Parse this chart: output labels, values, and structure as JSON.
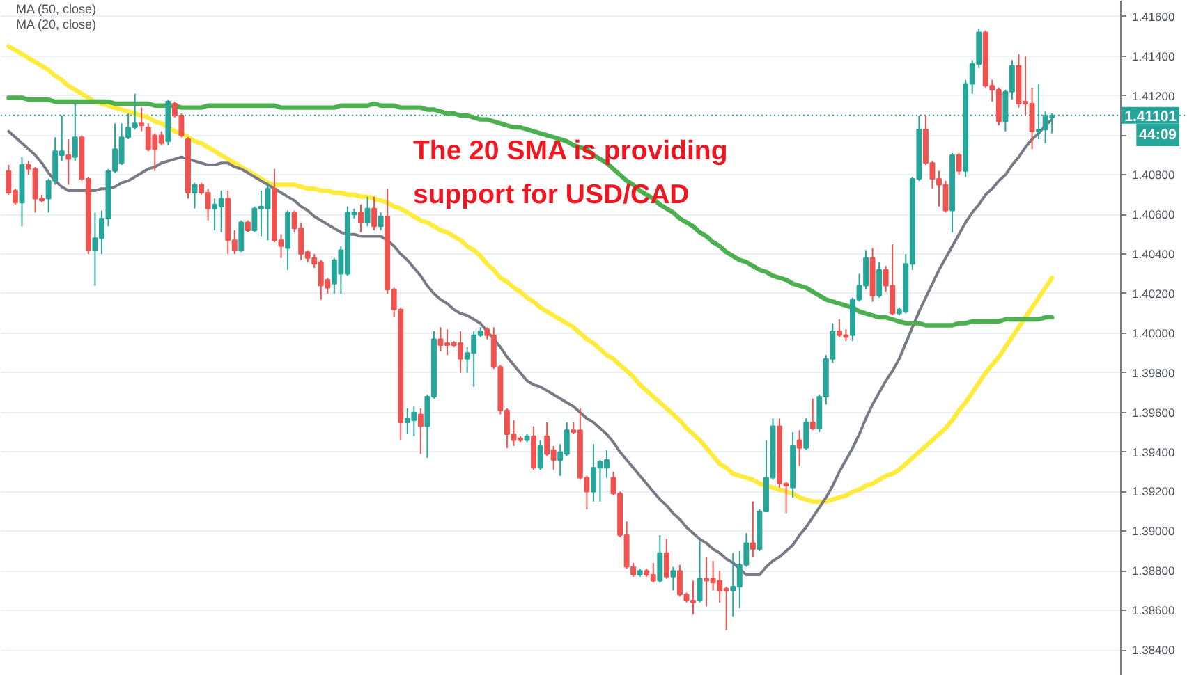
{
  "chart_data": {
    "type": "candlestick",
    "categories": [
      null,
      null,
      null,
      null,
      null,
      null,
      null,
      null,
      null,
      null,
      null,
      null,
      null,
      null,
      null,
      null,
      null,
      null,
      null,
      null,
      null,
      null,
      null,
      null,
      null,
      null,
      null,
      null,
      null,
      null,
      null,
      null,
      null,
      null,
      null,
      null,
      null,
      null,
      null,
      null,
      null,
      null,
      null,
      null,
      null,
      null,
      null,
      null,
      null,
      null,
      null,
      null,
      null,
      null,
      null,
      null,
      null,
      null,
      null,
      null,
      null,
      null,
      null,
      null,
      null,
      null,
      null,
      null,
      null,
      null,
      null,
      null,
      null,
      null,
      null,
      null,
      null,
      null,
      null,
      null,
      null,
      null,
      null,
      null,
      null,
      null,
      null,
      null,
      null,
      null,
      null,
      null,
      null,
      null,
      null,
      null,
      null,
      null,
      null,
      null,
      null,
      null,
      null,
      null,
      null,
      null,
      null,
      null,
      null,
      null,
      null,
      null,
      null,
      null,
      null,
      null,
      null,
      null,
      null,
      null,
      null,
      null,
      null,
      null,
      null,
      null,
      null,
      null,
      null,
      null,
      null,
      null,
      null,
      null,
      null,
      null,
      null,
      null,
      null,
      null,
      null,
      null,
      null,
      null,
      null,
      null,
      null,
      null,
      null,
      null,
      null,
      null,
      null,
      null,
      null,
      null,
      null,
      null
    ],
    "ohlc": [
      [
        1.4082,
        1.4085,
        1.407,
        1.4071
      ],
      [
        1.4072,
        1.4073,
        1.4065,
        1.4066
      ],
      [
        1.4066,
        1.4089,
        1.4054,
        1.4085
      ],
      [
        1.4085,
        1.4087,
        1.408,
        1.4083
      ],
      [
        1.4083,
        1.4084,
        1.4061,
        1.4068
      ],
      [
        1.4068,
        1.407,
        1.4066,
        1.4067
      ],
      [
        1.4068,
        1.4078,
        1.4061,
        1.4077
      ],
      [
        1.4077,
        1.4099,
        1.4075,
        1.4092
      ],
      [
        1.409,
        1.411,
        1.4087,
        1.4092
      ],
      [
        1.409,
        1.4098,
        1.4075,
        1.4088
      ],
      [
        1.4089,
        1.4116,
        1.4087,
        1.4099
      ],
      [
        1.4099,
        1.41,
        1.4077,
        1.4078
      ],
      [
        1.4078,
        1.4079,
        1.404,
        1.4042
      ],
      [
        1.4042,
        1.4061,
        1.4024,
        1.4048
      ],
      [
        1.4048,
        1.4062,
        1.404,
        1.4058
      ],
      [
        1.4058,
        1.4083,
        1.4054,
        1.4082
      ],
      [
        1.4082,
        1.4106,
        1.4081,
        1.4093
      ],
      [
        1.4086,
        1.4106,
        1.4085,
        1.4099
      ],
      [
        1.4099,
        1.4111,
        1.4098,
        1.4104
      ],
      [
        1.4104,
        1.4121,
        1.4103,
        1.4106
      ],
      [
        1.4106,
        1.4114,
        1.4102,
        1.4105
      ],
      [
        1.4104,
        1.4106,
        1.4092,
        1.4093
      ],
      [
        1.41,
        1.4101,
        1.4082,
        1.4093
      ],
      [
        1.41,
        1.4102,
        1.4095,
        1.4096
      ],
      [
        1.4097,
        1.4118,
        1.4095,
        1.4117
      ],
      [
        1.4116,
        1.4117,
        1.4109,
        1.411
      ],
      [
        1.411,
        1.4111,
        1.4099,
        1.41
      ],
      [
        1.4098,
        1.4099,
        1.4068,
        1.4071
      ],
      [
        1.4071,
        1.4076,
        1.4063,
        1.4075
      ],
      [
        1.4075,
        1.4076,
        1.407,
        1.4071
      ],
      [
        1.4071,
        1.4073,
        1.4057,
        1.4063
      ],
      [
        1.4063,
        1.4068,
        1.4052,
        1.4065
      ],
      [
        1.4064,
        1.4072,
        1.4051,
        1.4068
      ],
      [
        1.4068,
        1.4072,
        1.404,
        1.4047
      ],
      [
        1.4047,
        1.4052,
        1.404,
        1.4042
      ],
      [
        1.4042,
        1.4057,
        1.4041,
        1.4056
      ],
      [
        1.4056,
        1.4057,
        1.4051,
        1.4052
      ],
      [
        1.4052,
        1.4064,
        1.4051,
        1.4063
      ],
      [
        1.4063,
        1.4072,
        1.4049,
        1.4064
      ],
      [
        1.4063,
        1.4076,
        1.4047,
        1.4073
      ],
      [
        1.4073,
        1.4083,
        1.4046,
        1.4047
      ],
      [
        1.4047,
        1.405,
        1.4038,
        1.4044
      ],
      [
        1.4043,
        1.4062,
        1.4032,
        1.4061
      ],
      [
        1.4061,
        1.4062,
        1.4051,
        1.4053
      ],
      [
        1.4053,
        1.4056,
        1.4037,
        1.404
      ],
      [
        1.4041,
        1.4042,
        1.4036,
        1.4038
      ],
      [
        1.4038,
        1.404,
        1.4033,
        1.4035
      ],
      [
        1.4036,
        1.4037,
        1.4017,
        1.4024
      ],
      [
        1.4027,
        1.4028,
        1.402,
        1.4023
      ],
      [
        1.4025,
        1.4038,
        1.402,
        1.4037
      ],
      [
        1.403,
        1.4044,
        1.402,
        1.4042
      ],
      [
        1.403,
        1.4064,
        1.4029,
        1.4061
      ],
      [
        1.406,
        1.4063,
        1.4058,
        1.4061
      ],
      [
        1.4061,
        1.4065,
        1.4051,
        1.4056
      ],
      [
        1.4056,
        1.4069,
        1.4054,
        1.4063
      ],
      [
        1.4063,
        1.4069,
        1.4052,
        1.4054
      ],
      [
        1.4054,
        1.4061,
        1.4052,
        1.4059
      ],
      [
        1.4059,
        1.4073,
        1.402,
        1.4022
      ],
      [
        1.4022,
        1.4023,
        1.4008,
        1.4012
      ],
      [
        1.4012,
        1.4013,
        1.3946,
        1.3955
      ],
      [
        1.3955,
        1.3962,
        1.3949,
        1.3957
      ],
      [
        1.3956,
        1.3963,
        1.3948,
        1.396
      ],
      [
        1.3959,
        1.3962,
        1.3939,
        1.3953
      ],
      [
        1.3953,
        1.3969,
        1.3937,
        1.3968
      ],
      [
        1.3968,
        1.4001,
        1.3967,
        1.3997
      ],
      [
        1.3997,
        1.4003,
        1.3991,
        1.3994
      ],
      [
        1.3995,
        1.4002,
        1.3989,
        1.3994
      ],
      [
        1.3995,
        1.3996,
        1.3993,
        1.3994
      ],
      [
        1.3995,
        1.4001,
        1.398,
        1.3987
      ],
      [
        1.3987,
        1.3993,
        1.398,
        1.399
      ],
      [
        1.399,
        1.4001,
        1.3973,
        1.3999
      ],
      [
        1.3999,
        1.4003,
        1.3998,
        1.4001
      ],
      [
        1.4002,
        1.4003,
        1.3997,
        1.3999
      ],
      [
        1.3999,
        1.4003,
        1.3982,
        1.3983
      ],
      [
        1.3983,
        1.3984,
        1.3959,
        1.3961
      ],
      [
        1.3961,
        1.3962,
        1.3942,
        1.3949
      ],
      [
        1.3949,
        1.3956,
        1.3943,
        1.3946
      ],
      [
        1.3947,
        1.3948,
        1.3945,
        1.3946
      ],
      [
        1.3946,
        1.3949,
        1.3945,
        1.3948
      ],
      [
        1.3948,
        1.3953,
        1.3931,
        1.3932
      ],
      [
        1.3932,
        1.3946,
        1.3931,
        1.3943
      ],
      [
        1.3948,
        1.3955,
        1.3938,
        1.3939
      ],
      [
        1.3941,
        1.3943,
        1.3931,
        1.3936
      ],
      [
        1.3936,
        1.3944,
        1.3928,
        1.394
      ],
      [
        1.3939,
        1.3955,
        1.3938,
        1.3951
      ],
      [
        1.3951,
        1.3955,
        1.3949,
        1.395
      ],
      [
        1.3951,
        1.3962,
        1.3926,
        1.3927
      ],
      [
        1.3927,
        1.3928,
        1.3911,
        1.392
      ],
      [
        1.392,
        1.3944,
        1.3915,
        1.3932
      ],
      [
        1.3932,
        1.3936,
        1.3915,
        1.3935
      ],
      [
        1.3932,
        1.3941,
        1.3927,
        1.3936
      ],
      [
        1.3927,
        1.393,
        1.3918,
        1.3919
      ],
      [
        1.3919,
        1.392,
        1.3897,
        1.3898
      ],
      [
        1.3898,
        1.3905,
        1.3881,
        1.3882
      ],
      [
        1.3882,
        1.3884,
        1.3877,
        1.3878
      ],
      [
        1.3878,
        1.3881,
        1.3877,
        1.388
      ],
      [
        1.388,
        1.3881,
        1.3877,
        1.3878
      ],
      [
        1.3878,
        1.3884,
        1.3874,
        1.3875
      ],
      [
        1.3875,
        1.3898,
        1.3874,
        1.3889
      ],
      [
        1.3889,
        1.3896,
        1.3876,
        1.3877
      ],
      [
        1.3877,
        1.3882,
        1.387,
        1.388
      ],
      [
        1.388,
        1.3883,
        1.3867,
        1.3868
      ],
      [
        1.3868,
        1.3869,
        1.3864,
        1.3865
      ],
      [
        1.3865,
        1.3875,
        1.3858,
        1.3864
      ],
      [
        1.3865,
        1.3895,
        1.3864,
        1.3876
      ],
      [
        1.3876,
        1.3887,
        1.3862,
        1.3875
      ],
      [
        1.3876,
        1.3885,
        1.387,
        1.3874
      ],
      [
        1.3875,
        1.388,
        1.3864,
        1.387
      ],
      [
        1.3871,
        1.3872,
        1.385,
        1.387
      ],
      [
        1.387,
        1.3889,
        1.3857,
        1.3872
      ],
      [
        1.3872,
        1.389,
        1.3861,
        1.3883
      ],
      [
        1.3883,
        1.3899,
        1.3882,
        1.3894
      ],
      [
        1.3894,
        1.3915,
        1.3887,
        1.3891
      ],
      [
        1.3891,
        1.3911,
        1.389,
        1.391
      ],
      [
        1.391,
        1.3946,
        1.391,
        1.3927
      ],
      [
        1.3927,
        1.3957,
        1.3926,
        1.3953
      ],
      [
        1.3953,
        1.3957,
        1.3922,
        1.3924
      ],
      [
        1.3924,
        1.3925,
        1.3909,
        1.3923
      ],
      [
        1.3922,
        1.395,
        1.3917,
        1.3943
      ],
      [
        1.3946,
        1.3951,
        1.3933,
        1.3942
      ],
      [
        1.3942,
        1.3957,
        1.3941,
        1.3955
      ],
      [
        1.3955,
        1.3967,
        1.3951,
        1.3952
      ],
      [
        1.3952,
        1.3969,
        1.395,
        1.3968
      ],
      [
        1.3968,
        1.3989,
        1.3964,
        1.3987
      ],
      [
        1.3987,
        1.4005,
        1.3985,
        1.4001
      ],
      [
        1.4001,
        1.4007,
        1.3998,
        1.3999
      ],
      [
        1.3999,
        1.4002,
        1.3996,
        1.3998
      ],
      [
        1.3999,
        1.4018,
        1.3996,
        1.4017
      ],
      [
        1.4017,
        1.403,
        1.4016,
        1.4024
      ],
      [
        1.4024,
        1.4042,
        1.4022,
        1.4038
      ],
      [
        1.4038,
        1.4043,
        1.4016,
        1.4019
      ],
      [
        1.4019,
        1.4036,
        1.4018,
        1.4032
      ],
      [
        1.4032,
        1.4034,
        1.4021,
        1.4024
      ],
      [
        1.4024,
        1.4045,
        1.4009,
        1.401
      ],
      [
        1.401,
        1.4013,
        1.4009,
        1.4012
      ],
      [
        1.4011,
        1.404,
        1.401,
        1.4035
      ],
      [
        1.4035,
        1.4079,
        1.4032,
        1.4078
      ],
      [
        1.4078,
        1.411,
        1.4077,
        1.4103
      ],
      [
        1.4103,
        1.411,
        1.4085,
        1.4086
      ],
      [
        1.4086,
        1.4087,
        1.4073,
        1.4078
      ],
      [
        1.4078,
        1.4082,
        1.4064,
        1.4075
      ],
      [
        1.4075,
        1.4077,
        1.4061,
        1.4062
      ],
      [
        1.4062,
        1.4091,
        1.4051,
        1.409
      ],
      [
        1.409,
        1.4091,
        1.408,
        1.4082
      ],
      [
        1.4082,
        1.4128,
        1.4079,
        1.4126
      ],
      [
        1.4126,
        1.4138,
        1.4121,
        1.4136
      ],
      [
        1.4136,
        1.4154,
        1.4134,
        1.4152
      ],
      [
        1.4152,
        1.4153,
        1.4124,
        1.4125
      ],
      [
        1.4125,
        1.4128,
        1.4117,
        1.4123
      ],
      [
        1.4123,
        1.4124,
        1.4105,
        1.4107
      ],
      [
        1.4107,
        1.4123,
        1.4102,
        1.4122
      ],
      [
        1.4122,
        1.4138,
        1.4118,
        1.4135
      ],
      [
        1.4135,
        1.4141,
        1.4114,
        1.4116
      ],
      [
        1.4117,
        1.414,
        1.411,
        1.4116
      ],
      [
        1.4116,
        1.4124,
        1.4093,
        1.4102
      ],
      [
        1.4102,
        1.4126,
        1.4098,
        1.4103
      ],
      [
        1.4103,
        1.4112,
        1.4096,
        1.411
      ],
      [
        1.4109,
        1.4111,
        1.4101,
        1.411
      ]
    ],
    "colors": [
      "#ef5350",
      "#ef5350",
      "#26a69a",
      "#ef5350",
      "#ef5350",
      "#ef5350",
      "#26a69a",
      "#26a69a",
      "#26a69a",
      "#ef5350",
      "#26a69a",
      "#ef5350",
      "#ef5350",
      "#26a69a",
      "#26a69a",
      "#26a69a",
      "#26a69a",
      "#26a69a",
      "#26a69a",
      "#26a69a",
      "#ef5350",
      "#ef5350",
      "#ef5350",
      "#ef5350",
      "#26a69a",
      "#ef5350",
      "#ef5350",
      "#ef5350",
      "#26a69a",
      "#ef5350",
      "#ef5350",
      "#26a69a",
      "#26a69a",
      "#ef5350",
      "#ef5350",
      "#26a69a",
      "#ef5350",
      "#26a69a",
      "#26a69a",
      "#26a69a",
      "#ef5350",
      "#ef5350",
      "#26a69a",
      "#ef5350",
      "#ef5350",
      "#ef5350",
      "#ef5350",
      "#ef5350",
      "#ef5350",
      "#26a69a",
      "#26a69a",
      "#26a69a",
      "#26a69a",
      "#ef5350",
      "#26a69a",
      "#ef5350",
      "#26a69a",
      "#ef5350",
      "#ef5350",
      "#ef5350",
      "#26a69a",
      "#26a69a",
      "#ef5350",
      "#26a69a",
      "#26a69a",
      "#ef5350",
      "#ef5350",
      "#ef5350",
      "#ef5350",
      "#26a69a",
      "#26a69a",
      "#26a69a",
      "#ef5350",
      "#ef5350",
      "#ef5350",
      "#ef5350",
      "#ef5350",
      "#ef5350",
      "#26a69a",
      "#ef5350",
      "#26a69a",
      "#ef5350",
      "#ef5350",
      "#26a69a",
      "#26a69a",
      "#ef5350",
      "#ef5350",
      "#ef5350",
      "#26a69a",
      "#26a69a",
      "#26a69a",
      "#ef5350",
      "#ef5350",
      "#ef5350",
      "#ef5350",
      "#26a69a",
      "#ef5350",
      "#ef5350",
      "#26a69a",
      "#ef5350",
      "#26a69a",
      "#ef5350",
      "#ef5350",
      "#ef5350",
      "#26a69a",
      "#ef5350",
      "#ef5350",
      "#ef5350",
      "#ef5350",
      "#26a69a",
      "#26a69a",
      "#26a69a",
      "#ef5350",
      "#26a69a",
      "#26a69a",
      "#26a69a",
      "#ef5350",
      "#ef5350",
      "#26a69a",
      "#ef5350",
      "#26a69a",
      "#ef5350",
      "#26a69a",
      "#26a69a",
      "#26a69a",
      "#ef5350",
      "#ef5350",
      "#26a69a",
      "#26a69a",
      "#26a69a",
      "#ef5350",
      "#26a69a",
      "#ef5350",
      "#ef5350",
      "#26a69a",
      "#26a69a",
      "#26a69a",
      "#26a69a",
      "#ef5350",
      "#ef5350",
      "#ef5350",
      "#ef5350",
      "#26a69a",
      "#ef5350",
      "#26a69a",
      "#26a69a",
      "#26a69a",
      "#ef5350",
      "#ef5350",
      "#ef5350",
      "#26a69a",
      "#26a69a",
      "#ef5350",
      "#ef5350",
      "#ef5350",
      "#26a69a",
      "#26a69a",
      "#26a69a"
    ],
    "series": [
      {
        "type": "line",
        "color": "#ffeb3b",
        "values": [
          1.4145,
          1.4143,
          1.4141,
          1.4139,
          1.4137,
          1.4135,
          1.4133,
          1.413,
          1.4128,
          1.4125,
          1.4123,
          1.4121,
          1.4119,
          1.4117,
          1.4116,
          1.4115,
          1.4114,
          1.4113,
          1.4112,
          1.4111,
          1.411,
          1.4109,
          1.4107,
          1.4106,
          1.4104,
          1.4102,
          1.4101,
          1.4099,
          1.4097,
          1.4096,
          1.4094,
          1.4092,
          1.409,
          1.4088,
          1.4086,
          1.4084,
          1.4082,
          1.408,
          1.4078,
          1.4076,
          1.4075,
          1.4075,
          1.4075,
          1.4075,
          1.4074,
          1.4073,
          1.4073,
          1.4072,
          1.4072,
          1.4071,
          1.4071,
          1.407,
          1.407,
          1.4069,
          1.4069,
          1.4068,
          1.4067,
          1.4066,
          1.4064,
          1.4063,
          1.4061,
          1.4059,
          1.4057,
          1.4056,
          1.4054,
          1.4052,
          1.4051,
          1.4049,
          1.4047,
          1.4044,
          1.4042,
          1.4039,
          1.4035,
          1.4032,
          1.4028,
          1.4026,
          1.4023,
          1.4021,
          1.4018,
          1.4016,
          1.4013,
          1.4011,
          1.4009,
          1.4007,
          1.4005,
          1.4003,
          1.4,
          1.3997,
          1.3995,
          1.3992,
          1.3989,
          1.3987,
          1.3984,
          1.3981,
          1.3978,
          1.3974,
          1.3971,
          1.3968,
          1.3965,
          1.3962,
          1.3959,
          1.3956,
          1.3952,
          1.3949,
          1.3946,
          1.3942,
          1.3938,
          1.3934,
          1.3932,
          1.3929,
          1.3928,
          1.3927,
          1.3926,
          1.3924,
          1.3923,
          1.3922,
          1.3921,
          1.392,
          1.3919,
          1.3917,
          1.3916,
          1.3915,
          1.3915,
          1.3915,
          1.3916,
          1.3917,
          1.3918,
          1.392,
          1.3921,
          1.3923,
          1.3924,
          1.3926,
          1.3928,
          1.3929,
          1.3931,
          1.3934,
          1.3937,
          1.394,
          1.3943,
          1.3946,
          1.3949,
          1.3952,
          1.3956,
          1.3961,
          1.3965,
          1.397,
          1.3975,
          1.398,
          1.3984,
          1.3988,
          1.3993,
          1.3998,
          1.4003,
          1.4008,
          1.4013,
          1.4018,
          1.4023,
          1.4028
        ]
      },
      {
        "type": "line",
        "color": "#787b86",
        "values": [
          1.4102,
          1.4099,
          1.4096,
          1.4093,
          1.409,
          1.4086,
          1.4081,
          1.4077,
          1.4074,
          1.4072,
          1.4072,
          1.4072,
          1.4072,
          1.4072,
          1.4073,
          1.4073,
          1.4074,
          1.4076,
          1.4077,
          1.4079,
          1.4081,
          1.4083,
          1.4084,
          1.4086,
          1.4087,
          1.4088,
          1.4089,
          1.4088,
          1.4087,
          1.4086,
          1.4085,
          1.4085,
          1.4086,
          1.4086,
          1.4084,
          1.4083,
          1.4081,
          1.4079,
          1.4077,
          1.4075,
          1.4073,
          1.4071,
          1.4069,
          1.4067,
          1.4064,
          1.4062,
          1.4059,
          1.4057,
          1.4055,
          1.4053,
          1.4051,
          1.405,
          1.405,
          1.4049,
          1.4049,
          1.4049,
          1.4049,
          1.4047,
          1.4044,
          1.404,
          1.4037,
          1.4033,
          1.4029,
          1.4024,
          1.402,
          1.4017,
          1.4015,
          1.4012,
          1.401,
          1.4009,
          1.4007,
          1.4005,
          1.4001,
          1.3997,
          1.3993,
          1.3988,
          1.3984,
          1.398,
          1.3976,
          1.3974,
          1.3973,
          1.3971,
          1.3969,
          1.3967,
          1.3965,
          1.3963,
          1.396,
          1.3957,
          1.3955,
          1.3952,
          1.3949,
          1.3945,
          1.394,
          1.3936,
          1.3932,
          1.3928,
          1.3924,
          1.392,
          1.3916,
          1.3913,
          1.3909,
          1.3906,
          1.3902,
          1.3899,
          1.3896,
          1.3894,
          1.3891,
          1.3889,
          1.3886,
          1.3884,
          1.3881,
          1.3878,
          1.3878,
          1.3878,
          1.3882,
          1.3885,
          1.3887,
          1.389,
          1.3893,
          1.3898,
          1.3902,
          1.3907,
          1.3912,
          1.3917,
          1.3923,
          1.393,
          1.3936,
          1.3942,
          1.3949,
          1.3957,
          1.3964,
          1.397,
          1.3976,
          1.3981,
          1.3987,
          1.3995,
          1.4003,
          1.4011,
          1.4018,
          1.4025,
          1.4032,
          1.4038,
          1.4044,
          1.405,
          1.4056,
          1.4061,
          1.4065,
          1.407,
          1.4073,
          1.4077,
          1.408,
          1.4085,
          1.4089,
          1.4094,
          1.4098,
          1.4101,
          1.4105,
          1.4108
        ]
      },
      {
        "type": "line",
        "color": "#4caf50",
        "values": [
          1.4119,
          1.4119,
          1.4119,
          1.4118,
          1.4118,
          1.4118,
          1.4118,
          1.4117,
          1.4117,
          1.4117,
          1.4117,
          1.4117,
          1.4117,
          1.4117,
          1.4117,
          1.4117,
          1.4116,
          1.4116,
          1.4116,
          1.4116,
          1.4116,
          1.4116,
          1.4115,
          1.4115,
          1.4115,
          1.4115,
          1.4114,
          1.4114,
          1.4114,
          1.4114,
          1.4115,
          1.4115,
          1.4115,
          1.4115,
          1.4115,
          1.4115,
          1.4115,
          1.4115,
          1.4115,
          1.4115,
          1.4115,
          1.4114,
          1.4114,
          1.4114,
          1.4114,
          1.4114,
          1.4114,
          1.4114,
          1.4114,
          1.4114,
          1.4115,
          1.4115,
          1.4115,
          1.4115,
          1.4115,
          1.4116,
          1.4115,
          1.4115,
          1.4115,
          1.4114,
          1.4114,
          1.4114,
          1.4114,
          1.4113,
          1.4113,
          1.4112,
          1.4111,
          1.4111,
          1.411,
          1.411,
          1.4109,
          1.4108,
          1.4108,
          1.4107,
          1.4106,
          1.4105,
          1.4104,
          1.4104,
          1.4103,
          1.4102,
          1.4101,
          1.41,
          1.4099,
          1.4098,
          1.4097,
          1.4095,
          1.4094,
          1.4093,
          1.409,
          1.4088,
          1.4086,
          1.4083,
          1.408,
          1.4077,
          1.4075,
          1.4072,
          1.407,
          1.4068,
          1.4065,
          1.4063,
          1.4061,
          1.4058,
          1.4056,
          1.4054,
          1.4051,
          1.4049,
          1.4046,
          1.4044,
          1.4041,
          1.4039,
          1.4037,
          1.4036,
          1.4034,
          1.4032,
          1.4031,
          1.4029,
          1.4028,
          1.4027,
          1.4025,
          1.4024,
          1.4023,
          1.4021,
          1.4019,
          1.4017,
          1.4016,
          1.4015,
          1.4014,
          1.4013,
          1.4011,
          1.401,
          1.4009,
          1.4008,
          1.4008,
          1.4007,
          1.4006,
          1.4005,
          1.4005,
          1.4005,
          1.4004,
          1.4004,
          1.4004,
          1.4004,
          1.4004,
          1.4005,
          1.4005,
          1.4006,
          1.4006,
          1.4006,
          1.4006,
          1.4006,
          1.4007,
          1.4007,
          1.4007,
          1.4007,
          1.4007,
          1.4007,
          1.4008,
          1.4008
        ]
      }
    ],
    "ylim": [
      1.3827,
      1.4168
    ],
    "yticks": [
      {
        "value": 1.416,
        "label": "1.41600"
      },
      {
        "value": 1.414,
        "label": "1.41400"
      },
      {
        "value": 1.412,
        "label": "1.41200"
      },
      {
        "value": 1.41,
        "label": null
      },
      {
        "value": 1.408,
        "label": "1.40800"
      },
      {
        "value": 1.406,
        "label": "1.40600"
      },
      {
        "value": 1.404,
        "label": "1.40400"
      },
      {
        "value": 1.402,
        "label": "1.40200"
      },
      {
        "value": 1.4,
        "label": "1.40000"
      },
      {
        "value": 1.398,
        "label": "1.39800"
      },
      {
        "value": 1.396,
        "label": "1.39600"
      },
      {
        "value": 1.394,
        "label": "1.39400"
      },
      {
        "value": 1.392,
        "label": "1.39200"
      },
      {
        "value": 1.39,
        "label": "1.39000"
      },
      {
        "value": 1.388,
        "label": "1.38800"
      },
      {
        "value": 1.386,
        "label": "1.38600"
      },
      {
        "value": 1.384,
        "label": "1.38400"
      }
    ],
    "grid": "y",
    "tick_labels": "y",
    "ref_lines": [
      {
        "axis": "y",
        "value": 1.41101,
        "label": "1.41101",
        "color": "#26a69a",
        "line_style": "dotted"
      }
    ],
    "annotations": [
      "MA (50, close)",
      "MA (20, close)",
      "The 20 SMA is providing\nsupport for USD/CAD",
      "44:09"
    ]
  }
}
